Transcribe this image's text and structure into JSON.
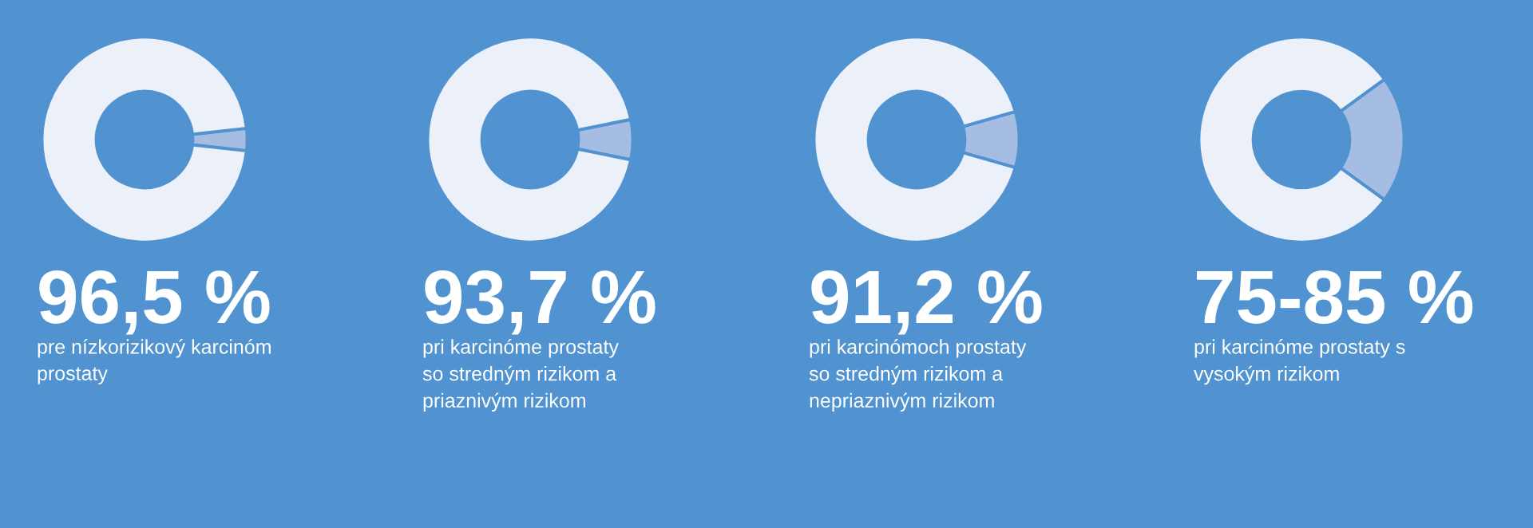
{
  "chart_data": [
    {
      "type": "donut",
      "title": "96,5 %",
      "subtitle": "pre nízkorizikový karcinóm\nprostaty",
      "categories": [
        null,
        null
      ],
      "values": [
        96.5,
        3.5
      ],
      "colors": [
        "#ebf0f9",
        "#a6bde3"
      ]
    },
    {
      "type": "donut",
      "title": "93,7 %",
      "subtitle": "pri karcinóme prostaty\nso stredným rizikom a\npriaznivým rizikom",
      "categories": [
        null,
        null
      ],
      "values": [
        93.7,
        6.3
      ],
      "colors": [
        "#ebf0f9",
        "#a6bde3"
      ]
    },
    {
      "type": "donut",
      "title": "91,2 %",
      "subtitle": "pri karcinómoch prostaty\nso stredným rizikom a\nnepriaznivým rizikom",
      "categories": [
        null,
        null
      ],
      "values": [
        91.2,
        8.8
      ],
      "colors": [
        "#ebf0f9",
        "#a6bde3"
      ]
    },
    {
      "type": "donut",
      "title": "75-85 %",
      "subtitle": "pri karcinóme prostaty s\nvysokým rizikom",
      "categories": [
        null,
        null
      ],
      "values": [
        80,
        20
      ],
      "colors": [
        "#ebf0f9",
        "#a6bde3"
      ]
    }
  ]
}
